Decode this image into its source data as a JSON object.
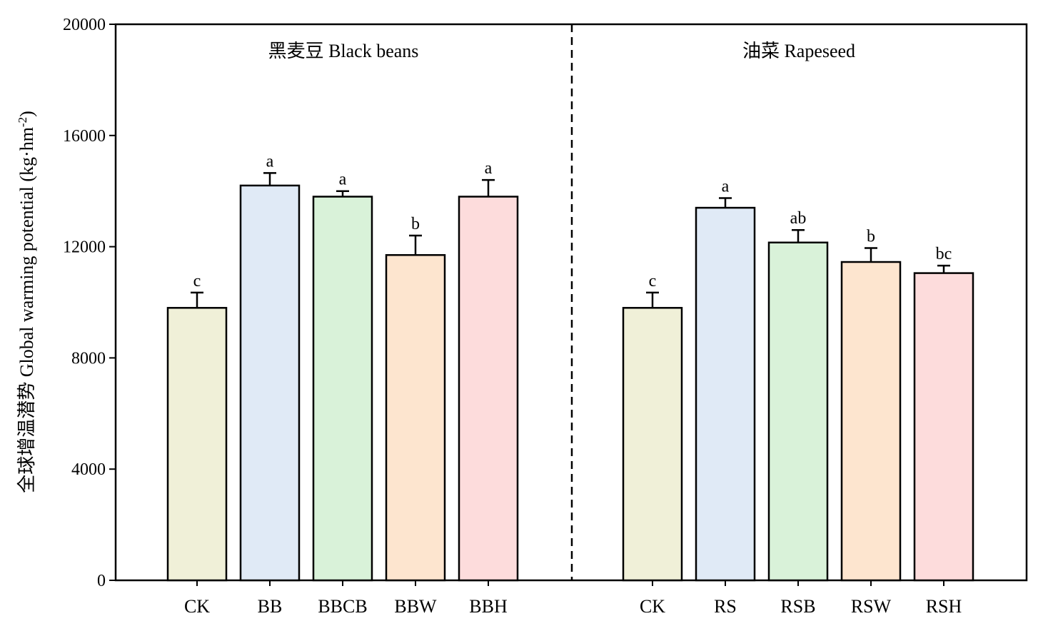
{
  "chart_data": {
    "type": "bar",
    "ylabel": "全球增温潜势 Global warming potential (kg·hm",
    "ylabel_sup": "-2",
    "ylabel_end": ")",
    "ylim": [
      0,
      20000
    ],
    "yticks": [
      0,
      4000,
      8000,
      12000,
      16000,
      20000
    ],
    "grid": false,
    "groups": [
      {
        "label": "黑麦豆 Black beans",
        "categories": [
          "CK",
          "BB",
          "BBCB",
          "BBW",
          "BBH"
        ],
        "values": [
          9800,
          14200,
          13800,
          11700,
          13800
        ],
        "errors": [
          550,
          450,
          200,
          700,
          600
        ],
        "significance": [
          "c",
          "a",
          "a",
          "b",
          "a"
        ],
        "colors": [
          "#f0f0d8",
          "#e0eaf6",
          "#d9f2d9",
          "#fde5cf",
          "#fddcdc"
        ]
      },
      {
        "label": "油菜 Rapeseed",
        "categories": [
          "CK",
          "RS",
          "RSB",
          "RSW",
          "RSH"
        ],
        "values": [
          9800,
          13400,
          12150,
          11450,
          11050
        ],
        "errors": [
          550,
          350,
          450,
          500,
          270
        ],
        "significance": [
          "c",
          "a",
          "ab",
          "b",
          "bc"
        ],
        "colors": [
          "#f0f0d8",
          "#e0eaf6",
          "#d9f2d9",
          "#fde5cf",
          "#fddcdc"
        ]
      }
    ]
  }
}
